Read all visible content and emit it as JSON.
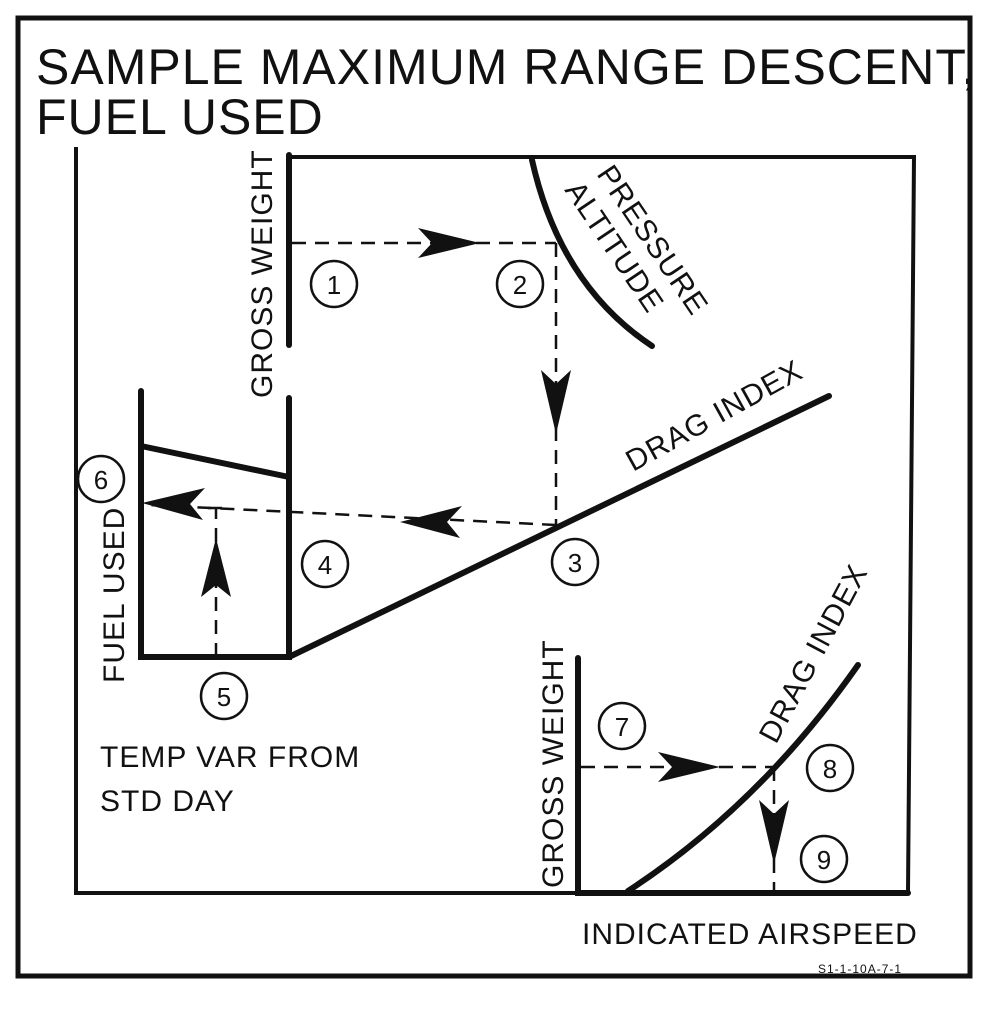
{
  "title": {
    "line1": "SAMPLE MAXIMUM RANGE DESCENT,",
    "line2": "FUEL USED"
  },
  "labels": {
    "gross_weight_top": "GROSS WEIGHT",
    "pressure_altitude_1": "PRESSURE",
    "pressure_altitude_2": "ALTITUDE",
    "drag_index_top": "DRAG INDEX",
    "fuel_used": "FUEL USED",
    "temp_var_1": "TEMP VAR FROM",
    "temp_var_2": "STD DAY",
    "gross_weight_bottom": "GROSS WEIGHT",
    "drag_index_bottom": "DRAG INDEX",
    "indicated_airspeed": "INDICATED AIRSPEED"
  },
  "steps": [
    "1",
    "2",
    "3",
    "4",
    "5",
    "6",
    "7",
    "8",
    "9"
  ],
  "figure_code": "S1-1-10A-7-1"
}
